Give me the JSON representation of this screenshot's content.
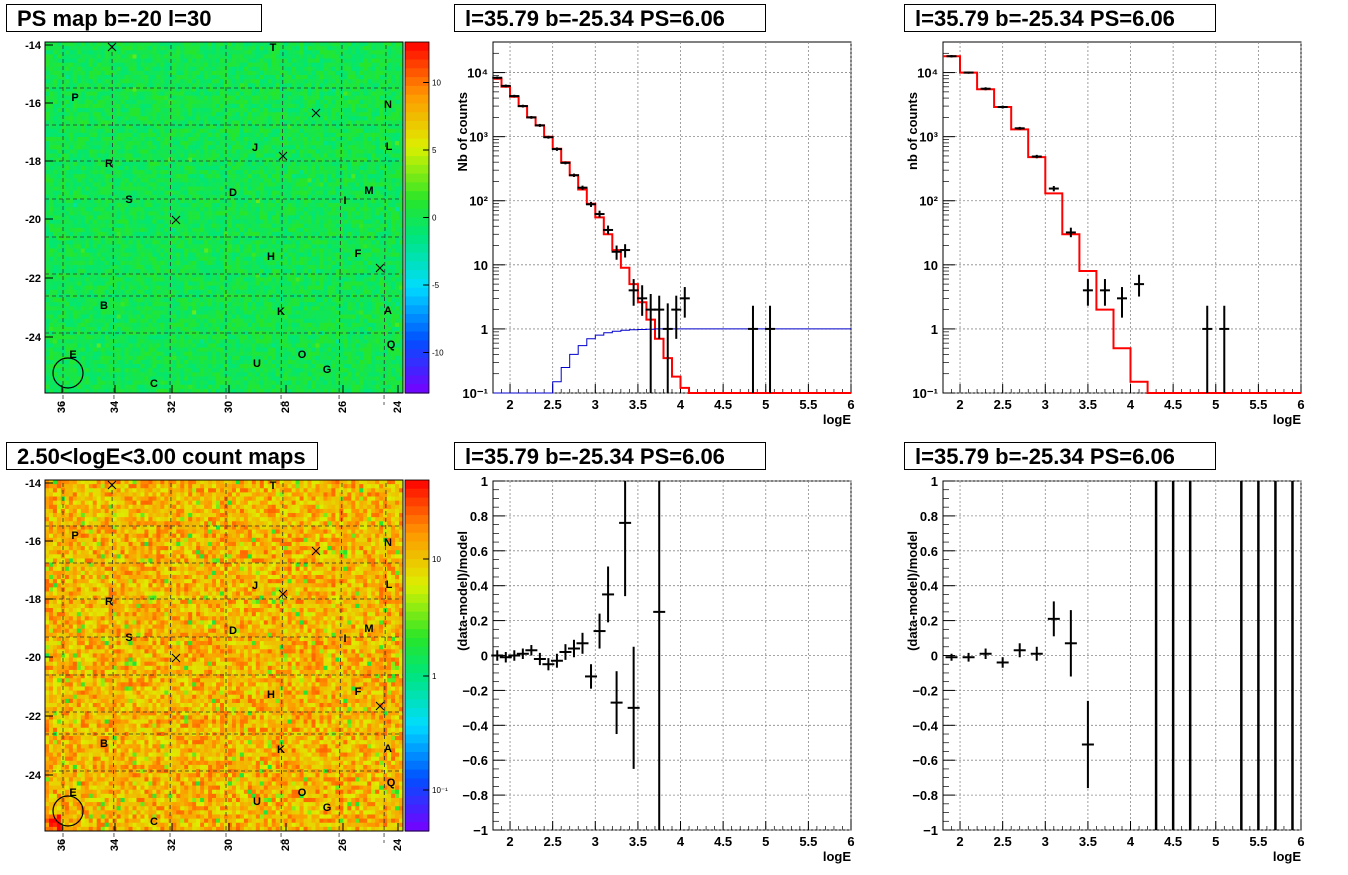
{
  "titles": {
    "ps_map": "PS map b=-20 l=30",
    "count_map": "2.50<logE<3.00 count maps",
    "spec_a": "l=35.79 b=-25.34 PS=6.06",
    "spec_b": "l=35.79 b=-25.34 PS=6.06",
    "res_a": "l=35.79 b=-25.34 PS=6.06",
    "res_b": "l=35.79 b=-25.34 PS=6.06"
  },
  "chart_data": [
    {
      "type": "heatmap",
      "title": "PS map b=-20 l=30",
      "xticks": [
        "36",
        "34",
        "32",
        "30",
        "28",
        "26",
        "24"
      ],
      "yticks": [
        "-14",
        "-16",
        "-18",
        "-20",
        "-22",
        "-24"
      ],
      "colorbar_ticks": [
        "10",
        "5",
        "0",
        "-5",
        "-10"
      ],
      "labels": [
        "T",
        "P",
        "N",
        "L",
        "J",
        "R",
        "M",
        "D",
        "S",
        "I",
        "F",
        "H",
        "B",
        "K",
        "A",
        "Q",
        "E",
        "O",
        "U",
        "G",
        "C"
      ],
      "scale": "linear",
      "zlim": [
        -13,
        13
      ]
    },
    {
      "type": "heatmap",
      "title": "2.50<logE<3.00 count maps",
      "xticks": [
        "36",
        "34",
        "32",
        "30",
        "28",
        "26",
        "24"
      ],
      "yticks": [
        "-14",
        "-16",
        "-18",
        "-20",
        "-22",
        "-24"
      ],
      "colorbar_ticks": [
        "10",
        "1",
        "10⁻¹"
      ],
      "labels": [
        "T",
        "P",
        "N",
        "L",
        "J",
        "R",
        "M",
        "D",
        "S",
        "I",
        "F",
        "H",
        "B",
        "K",
        "A",
        "Q",
        "E",
        "O",
        "U",
        "G",
        "C"
      ],
      "scale": "log"
    },
    {
      "type": "line",
      "title": "l=35.79 b=-25.34 PS=6.06",
      "xlabel": "logE",
      "ylabel": "Nb of counts",
      "yscale": "log",
      "xlim": [
        1.8,
        6
      ],
      "ylim": [
        0.1,
        30000
      ],
      "xticks": [
        "2",
        "2.5",
        "3",
        "3.5",
        "4",
        "4.5",
        "5",
        "5.5",
        "6"
      ],
      "yticks": [
        "10⁻¹",
        "1",
        "10",
        "10²",
        "10³",
        "10⁴"
      ],
      "model_edges": [
        1.8,
        1.9,
        2.0,
        2.1,
        2.2,
        2.3,
        2.4,
        2.5,
        2.6,
        2.7,
        2.8,
        2.9,
        3.0,
        3.1,
        3.2,
        3.3,
        3.4,
        3.5,
        3.6,
        3.7,
        3.8,
        3.9,
        4.0,
        4.1,
        4.2,
        4.3,
        6.0
      ],
      "model_values": [
        8000,
        6000,
        4200,
        3000,
        2000,
        1500,
        1000,
        650,
        400,
        250,
        150,
        90,
        55,
        30,
        17,
        9,
        5,
        2.6,
        1.4,
        0.7,
        0.35,
        0.18,
        0.12,
        0.1,
        0.1,
        0.1
      ],
      "exposure_values": [
        0.1,
        0.1,
        0.1,
        0.1,
        0.1,
        0.1,
        0.1,
        0.15,
        0.25,
        0.4,
        0.55,
        0.7,
        0.8,
        0.87,
        0.92,
        0.95,
        0.97,
        0.98,
        0.99,
        1,
        1,
        1,
        1,
        1,
        1,
        1
      ],
      "data_points": [
        {
          "x": 1.85,
          "y": 8300,
          "lo": 7900,
          "hi": 8700
        },
        {
          "x": 1.95,
          "y": 6200,
          "lo": 5900,
          "hi": 6500
        },
        {
          "x": 2.05,
          "y": 4300,
          "lo": 4100,
          "hi": 4500
        },
        {
          "x": 2.15,
          "y": 3000,
          "lo": 2850,
          "hi": 3150
        },
        {
          "x": 2.25,
          "y": 2000,
          "lo": 1900,
          "hi": 2100
        },
        {
          "x": 2.35,
          "y": 1500,
          "lo": 1420,
          "hi": 1580
        },
        {
          "x": 2.45,
          "y": 980,
          "lo": 930,
          "hi": 1030
        },
        {
          "x": 2.55,
          "y": 640,
          "lo": 600,
          "hi": 680
        },
        {
          "x": 2.65,
          "y": 390,
          "lo": 370,
          "hi": 410
        },
        {
          "x": 2.75,
          "y": 250,
          "lo": 235,
          "hi": 265
        },
        {
          "x": 2.85,
          "y": 160,
          "lo": 148,
          "hi": 172
        },
        {
          "x": 2.95,
          "y": 88,
          "lo": 80,
          "hi": 96
        },
        {
          "x": 3.05,
          "y": 62,
          "lo": 55,
          "hi": 70
        },
        {
          "x": 3.15,
          "y": 35,
          "lo": 30,
          "hi": 41
        },
        {
          "x": 3.25,
          "y": 16,
          "lo": 12,
          "hi": 20
        },
        {
          "x": 3.35,
          "y": 17,
          "lo": 13,
          "hi": 21
        },
        {
          "x": 3.45,
          "y": 4,
          "lo": 2.3,
          "hi": 6
        },
        {
          "x": 3.55,
          "y": 3,
          "lo": 1.6,
          "hi": 4.8
        },
        {
          "x": 3.65,
          "y": 2,
          "lo": 0.1,
          "hi": 3.5
        },
        {
          "x": 3.75,
          "y": 2,
          "lo": 0.7,
          "hi": 3.3
        },
        {
          "x": 3.85,
          "y": 1,
          "lo": 0.1,
          "hi": 2.5
        },
        {
          "x": 3.95,
          "y": 2,
          "lo": 0.7,
          "hi": 3.3
        },
        {
          "x": 4.05,
          "y": 3,
          "lo": 1.5,
          "hi": 4.5
        },
        {
          "x": 4.85,
          "y": 1,
          "lo": 0.1,
          "hi": 2.3
        },
        {
          "x": 5.05,
          "y": 1,
          "lo": 0.1,
          "hi": 2.3
        }
      ]
    },
    {
      "type": "line",
      "title": "l=35.79 b=-25.34 PS=6.06",
      "xlabel": "logE",
      "ylabel": "nb of counts",
      "yscale": "log",
      "xlim": [
        1.8,
        6
      ],
      "ylim": [
        0.1,
        30000
      ],
      "xticks": [
        "2",
        "2.5",
        "3",
        "3.5",
        "4",
        "4.5",
        "5",
        "5.5",
        "6"
      ],
      "yticks": [
        "10⁻¹",
        "1",
        "10",
        "10²",
        "10³",
        "10⁴"
      ],
      "model_edges": [
        1.8,
        2.0,
        2.2,
        2.4,
        2.6,
        2.8,
        3.0,
        3.2,
        3.4,
        3.6,
        3.8,
        4.0,
        4.2,
        6.0
      ],
      "model_values": [
        18000,
        10000,
        5500,
        2900,
        1300,
        480,
        130,
        30,
        8,
        2,
        0.5,
        0.15,
        0.1
      ],
      "data_points": [
        {
          "x": 1.9,
          "y": 18000,
          "lo": 17200,
          "hi": 18800
        },
        {
          "x": 2.1,
          "y": 10000,
          "lo": 9600,
          "hi": 10400
        },
        {
          "x": 2.3,
          "y": 5600,
          "lo": 5300,
          "hi": 5900
        },
        {
          "x": 2.5,
          "y": 2900,
          "lo": 2750,
          "hi": 3050
        },
        {
          "x": 2.7,
          "y": 1350,
          "lo": 1280,
          "hi": 1420
        },
        {
          "x": 2.9,
          "y": 490,
          "lo": 460,
          "hi": 520
        },
        {
          "x": 3.1,
          "y": 155,
          "lo": 140,
          "hi": 170
        },
        {
          "x": 3.3,
          "y": 32,
          "lo": 27,
          "hi": 38
        },
        {
          "x": 3.5,
          "y": 4,
          "lo": 2.3,
          "hi": 6
        },
        {
          "x": 3.7,
          "y": 4,
          "lo": 2.3,
          "hi": 6
        },
        {
          "x": 3.9,
          "y": 3,
          "lo": 1.5,
          "hi": 4.5
        },
        {
          "x": 4.1,
          "y": 5,
          "lo": 3.2,
          "hi": 7
        },
        {
          "x": 4.9,
          "y": 1,
          "lo": 0.1,
          "hi": 2.3
        },
        {
          "x": 5.1,
          "y": 1,
          "lo": 0.1,
          "hi": 2.3
        }
      ]
    },
    {
      "type": "scatter",
      "title": "l=35.79 b=-25.34 PS=6.06",
      "xlabel": "logE",
      "ylabel": "(data-model)/model",
      "xlim": [
        1.8,
        6
      ],
      "ylim": [
        -1,
        1
      ],
      "xticks": [
        "2",
        "2.5",
        "3",
        "3.5",
        "4",
        "4.5",
        "5",
        "5.5",
        "6"
      ],
      "yticks": [
        "−1",
        "−0.8",
        "−0.6",
        "−0.4",
        "−0.2",
        "0",
        "0.2",
        "0.4",
        "0.6",
        "0.8",
        "1"
      ],
      "data_points": [
        {
          "x": 1.85,
          "y": 0.0,
          "e": 0.03
        },
        {
          "x": 1.95,
          "y": -0.01,
          "e": 0.03
        },
        {
          "x": 2.05,
          "y": 0.0,
          "e": 0.03
        },
        {
          "x": 2.15,
          "y": 0.01,
          "e": 0.03
        },
        {
          "x": 2.25,
          "y": 0.03,
          "e": 0.03
        },
        {
          "x": 2.35,
          "y": -0.02,
          "e": 0.035
        },
        {
          "x": 2.45,
          "y": -0.05,
          "e": 0.035
        },
        {
          "x": 2.55,
          "y": -0.03,
          "e": 0.04
        },
        {
          "x": 2.65,
          "y": 0.02,
          "e": 0.045
        },
        {
          "x": 2.75,
          "y": 0.04,
          "e": 0.05
        },
        {
          "x": 2.85,
          "y": 0.07,
          "e": 0.06
        },
        {
          "x": 2.95,
          "y": -0.12,
          "e": 0.07
        },
        {
          "x": 3.05,
          "y": 0.14,
          "e": 0.1
        },
        {
          "x": 3.15,
          "y": 0.35,
          "e": 0.16
        },
        {
          "x": 3.25,
          "y": -0.27,
          "e": 0.18
        },
        {
          "x": 3.35,
          "y": 0.76,
          "e": 0.42
        },
        {
          "x": 3.45,
          "y": -0.3,
          "e": 0.35
        },
        {
          "x": 3.75,
          "y": 0.25,
          "e": 1.5
        }
      ]
    },
    {
      "type": "scatter",
      "title": "l=35.79 b=-25.34 PS=6.06",
      "xlabel": "logE",
      "ylabel": "(data-model)/model",
      "xlim": [
        1.8,
        6
      ],
      "ylim": [
        -1,
        1
      ],
      "xticks": [
        "2",
        "2.5",
        "3",
        "3.5",
        "4",
        "4.5",
        "5",
        "5.5",
        "6"
      ],
      "yticks": [
        "−1",
        "−0.8",
        "−0.6",
        "−0.4",
        "−0.2",
        "0",
        "0.2",
        "0.4",
        "0.6",
        "0.8",
        "1"
      ],
      "data_points": [
        {
          "x": 1.9,
          "y": -0.01,
          "e": 0.02
        },
        {
          "x": 2.1,
          "y": -0.01,
          "e": 0.025
        },
        {
          "x": 2.3,
          "y": 0.01,
          "e": 0.03
        },
        {
          "x": 2.5,
          "y": -0.04,
          "e": 0.03
        },
        {
          "x": 2.7,
          "y": 0.03,
          "e": 0.04
        },
        {
          "x": 2.9,
          "y": 0.01,
          "e": 0.04
        },
        {
          "x": 3.1,
          "y": 0.21,
          "e": 0.1
        },
        {
          "x": 3.3,
          "y": 0.07,
          "e": 0.19
        },
        {
          "x": 3.5,
          "y": -0.51,
          "e": 0.25
        }
      ],
      "vertical_bars": [
        4.3,
        4.5,
        4.7,
        5.3,
        5.5,
        5.7,
        5.9
      ]
    }
  ]
}
